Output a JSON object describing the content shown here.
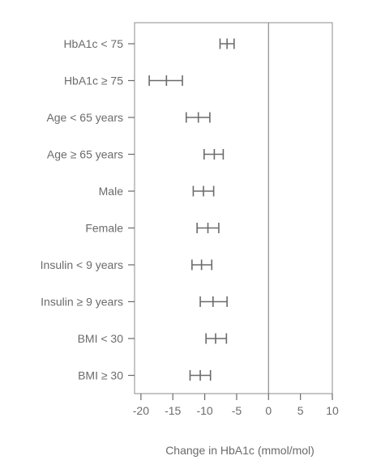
{
  "chart_data": {
    "type": "forest",
    "categories": [
      "HbA1c < 75",
      "HbA1c ≥ 75",
      "Age < 65 years",
      "Age ≥ 65 years",
      "Male",
      "Female",
      "Insulin < 9 years",
      "Insulin ≥ 9 years",
      "BMI < 30",
      "BMI ≥ 30"
    ],
    "series": [
      {
        "estimates": [
          -6.5,
          -16.0,
          -11.0,
          -8.5,
          -10.2,
          -9.5,
          -10.5,
          -8.7,
          -8.3,
          -10.7
        ],
        "lower": [
          -7.6,
          -18.7,
          -12.9,
          -10.1,
          -11.8,
          -11.2,
          -12.0,
          -10.7,
          -9.8,
          -12.3
        ],
        "upper": [
          -5.4,
          -13.5,
          -9.2,
          -7.1,
          -8.6,
          -7.8,
          -8.9,
          -6.5,
          -6.6,
          -9.1
        ]
      }
    ],
    "xlabel": "Change in HbA1c (mmol/mol)",
    "xlim": [
      -21,
      10
    ],
    "xticks": [
      -20,
      -15,
      -10,
      -5,
      0,
      5,
      10
    ],
    "reference_line": 0,
    "grid": false,
    "colors": {
      "mark": "#6b6b6b",
      "frame": "#8c8c8c",
      "text": "#6b6b6b"
    }
  }
}
